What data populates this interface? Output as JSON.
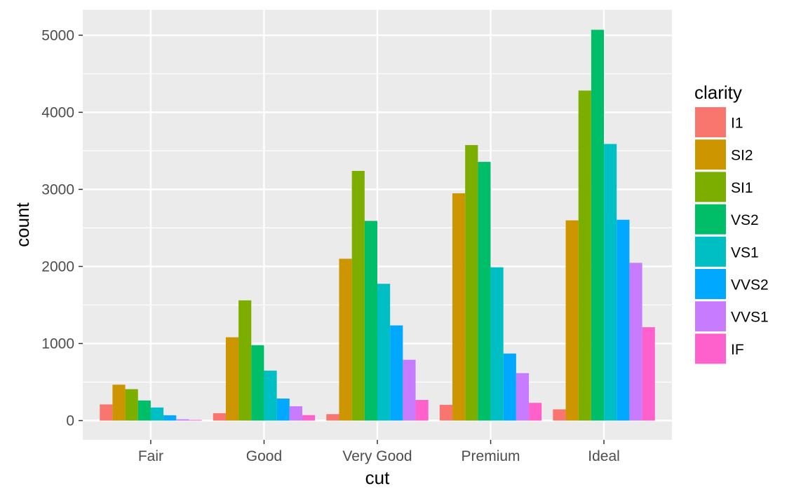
{
  "chart_data": {
    "type": "bar",
    "title": "",
    "xlabel": "cut",
    "ylabel": "count",
    "categories": [
      "Fair",
      "Good",
      "Very Good",
      "Premium",
      "Ideal"
    ],
    "ylim": [
      -250,
      5330
    ],
    "yticks": [
      0,
      1000,
      2000,
      3000,
      4000,
      5000
    ],
    "ytick_labels": [
      "0",
      "1000",
      "2000",
      "3000",
      "4000",
      "5000"
    ],
    "grid": true,
    "legend": {
      "title": "clarity",
      "position": "right"
    },
    "background": "#ebebeb",
    "series": [
      {
        "name": "I1",
        "color": "#F8766D",
        "values": [
          210,
          96,
          84,
          205,
          146
        ]
      },
      {
        "name": "SI2",
        "color": "#CD9600",
        "values": [
          466,
          1081,
          2100,
          2949,
          2598
        ]
      },
      {
        "name": "SI1",
        "color": "#7CAE00",
        "values": [
          408,
          1560,
          3240,
          3575,
          4282
        ]
      },
      {
        "name": "VS2",
        "color": "#00BE67",
        "values": [
          261,
          978,
          2591,
          3357,
          5071
        ]
      },
      {
        "name": "VS1",
        "color": "#00BFC4",
        "values": [
          170,
          648,
          1775,
          1989,
          3589
        ]
      },
      {
        "name": "VVS2",
        "color": "#00A9FF",
        "values": [
          69,
          286,
          1235,
          870,
          2606
        ]
      },
      {
        "name": "VVS1",
        "color": "#C77CFF",
        "values": [
          17,
          186,
          789,
          616,
          2047
        ]
      },
      {
        "name": "IF",
        "color": "#FF61CC",
        "values": [
          9,
          71,
          268,
          230,
          1212
        ]
      }
    ]
  }
}
